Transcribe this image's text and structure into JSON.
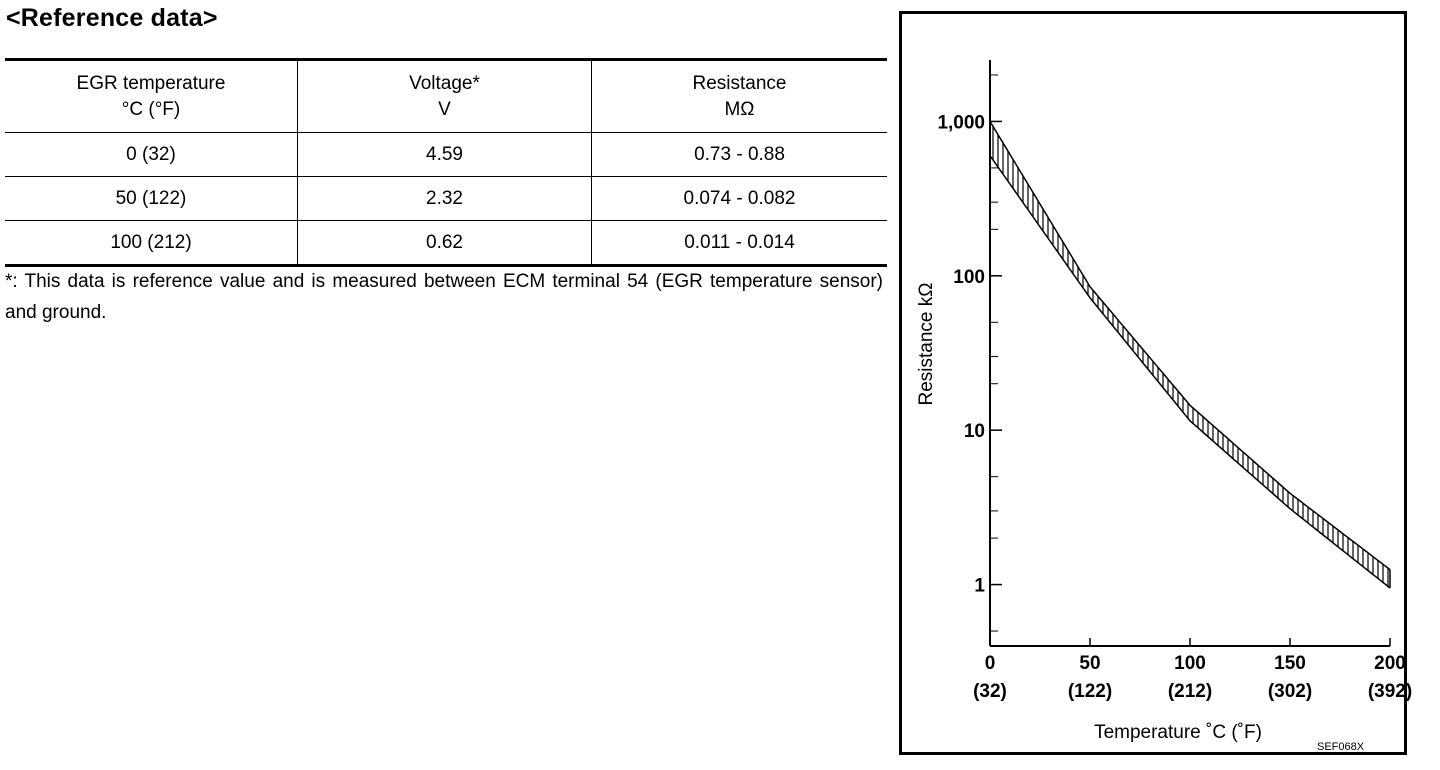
{
  "heading": "<Reference data>",
  "table": {
    "headers": [
      {
        "line1": "EGR temperature",
        "line2": "°C (°F)"
      },
      {
        "line1": "Voltage*",
        "line2": "V"
      },
      {
        "line1": "Resistance",
        "line2": "MΩ"
      }
    ],
    "rows": [
      [
        "0 (32)",
        "4.59",
        "0.73 - 0.88"
      ],
      [
        "50 (122)",
        "2.32",
        "0.074 - 0.082"
      ],
      [
        "100 (212)",
        "0.62",
        "0.011 - 0.014"
      ]
    ]
  },
  "footnote": "*: This data is reference value and is measured between ECM terminal 54 (EGR temperature sensor) and ground.",
  "chart_data": {
    "type": "area",
    "xlabel": "Temperature ˚C  (˚F)",
    "ylabel": "Resistance kΩ",
    "y_scale": "log",
    "xlim": [
      0,
      200
    ],
    "ylim": [
      0.4,
      2500
    ],
    "x_ticks": [
      {
        "value": 0,
        "label": "0",
        "sublabel": "(32)"
      },
      {
        "value": 50,
        "label": "50",
        "sublabel": "(122)"
      },
      {
        "value": 100,
        "label": "100",
        "sublabel": "(212)"
      },
      {
        "value": 150,
        "label": "150",
        "sublabel": "(302)"
      },
      {
        "value": 200,
        "label": "200",
        "sublabel": "(392)"
      }
    ],
    "y_ticks": [
      {
        "value": 1,
        "label": "1"
      },
      {
        "value": 10,
        "label": "10"
      },
      {
        "value": 100,
        "label": "100"
      },
      {
        "value": 1000,
        "label": "1,000"
      }
    ],
    "band": {
      "x": [
        0,
        50,
        100,
        150,
        200
      ],
      "upper": [
        1000,
        85,
        14.5,
        3.9,
        1.25
      ],
      "lower": [
        600,
        72,
        11.5,
        3.1,
        0.95
      ]
    },
    "code": "SEF068X"
  }
}
